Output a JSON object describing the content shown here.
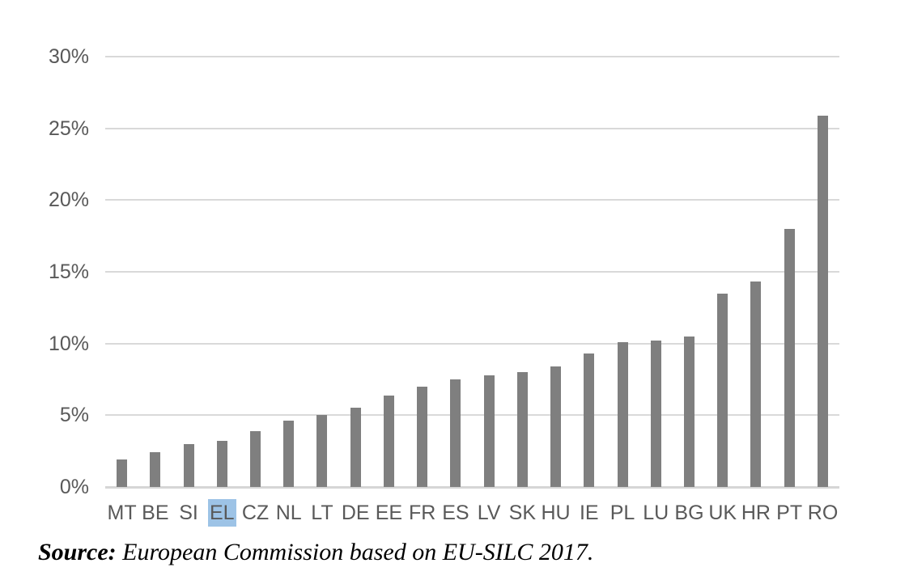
{
  "chart_data": {
    "type": "bar",
    "title": "",
    "xlabel": "",
    "ylabel": "",
    "unit": "%",
    "categories": [
      "MT",
      "BE",
      "SI",
      "EL",
      "CZ",
      "NL",
      "LT",
      "DE",
      "EE",
      "FR",
      "ES",
      "LV",
      "SK",
      "HU",
      "IE",
      "PL",
      "LU",
      "BG",
      "UK",
      "HR",
      "PT",
      "RO"
    ],
    "values": [
      1.9,
      2.4,
      3.0,
      3.2,
      3.9,
      4.6,
      5.0,
      5.5,
      6.4,
      7.0,
      7.5,
      7.8,
      8.0,
      8.4,
      9.3,
      10.1,
      10.2,
      10.5,
      13.5,
      14.3,
      18.0,
      25.9
    ],
    "ylim": [
      0,
      30
    ],
    "y_ticks": [
      30,
      25,
      20,
      15,
      10,
      5,
      0
    ],
    "y_tick_labels": [
      "30%",
      "25%",
      "20%",
      "15%",
      "10%",
      "5%",
      "0%"
    ],
    "grid": true,
    "legend": false,
    "bar_color": "#7f7f7f",
    "label_color": "#595959",
    "gridline_color": "#d9d9d9",
    "highlight_category": "EL",
    "highlight_color": "#9dc3e6"
  },
  "source": {
    "label": "Source:",
    "text": " European Commission based on EU-SILC 2017."
  }
}
